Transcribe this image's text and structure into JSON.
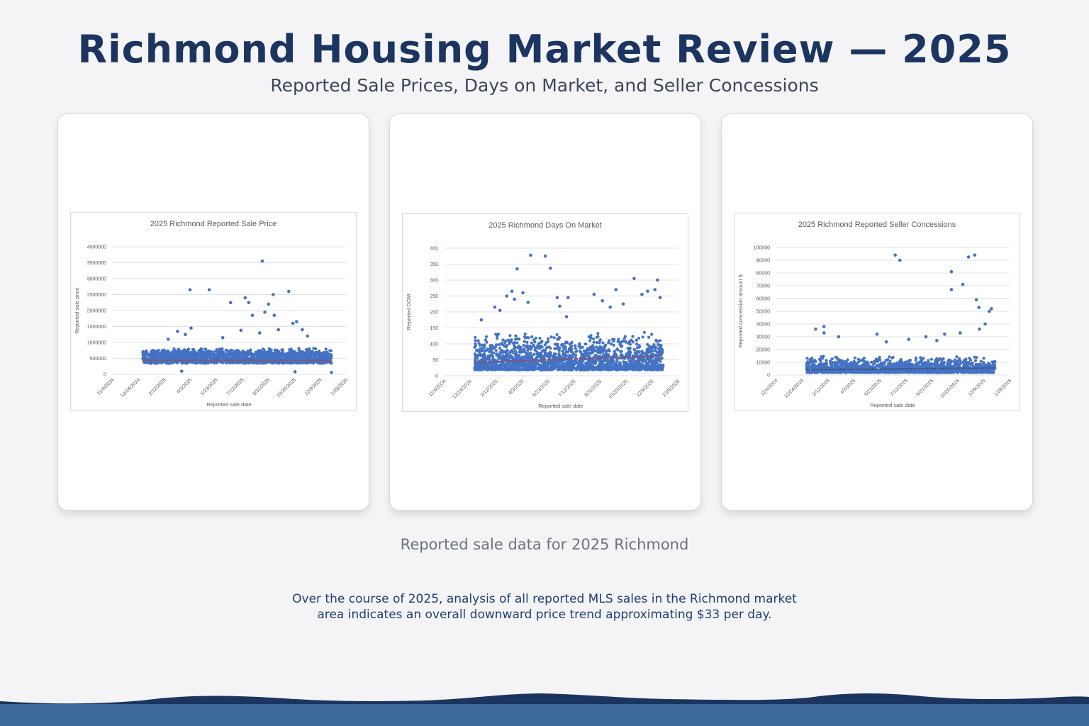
{
  "header": {
    "title": "Richmond Housing Market Review — 2025",
    "subtitle": "Reported Sale Prices, Days on Market, and Seller Concessions"
  },
  "caption": "Reported sale data for 2025 Richmond",
  "summary": {
    "line1": "Over the course of 2025, analysis of all reported MLS sales in the Richmond market",
    "line2": "area indicates an overall downward price trend approximating $33 per day."
  },
  "colors": {
    "navy": "#1b3560",
    "point": "#4472c4",
    "trend_price": "#c0392b",
    "trend_dom": "#c0392b",
    "trend_conc": "#404040",
    "wave_dark": "#1b3560",
    "wave_light": "#3e6a9c"
  },
  "chart_data": [
    {
      "type": "scatter",
      "title": "2025 Richmond Reported Sale Price",
      "xlabel": "Reported sale date",
      "ylabel": "Reported sale price",
      "x_tick_labels": [
        "11/4/2024",
        "12/24/2024",
        "2/12/2025",
        "4/3/2025",
        "5/23/2025",
        "7/12/2025",
        "8/31/2025",
        "10/20/2025",
        "12/9/2025",
        "1/28/2026"
      ],
      "xlim": [
        "2024-11-04",
        "2026-01-28"
      ],
      "y_tick_labels": [
        "0",
        "500000",
        "1000000",
        "1500000",
        "2000000",
        "2500000",
        "3000000",
        "3500000",
        "4000000"
      ],
      "ylim": [
        0,
        4000000
      ],
      "grid": true,
      "trendline": {
        "style": "dotted",
        "color": "red",
        "start": [
          "2025-01-02",
          440000
        ],
        "end": [
          "2025-12-31",
          430000
        ]
      },
      "bulk": {
        "x_range": [
          "2025-01-02",
          "2025-12-31"
        ],
        "y_range": [
          180000,
          900000
        ],
        "count": 1500
      },
      "outliers": [
        [
          "2025-04-03",
          2650000
        ],
        [
          "2025-05-10",
          2650000
        ],
        [
          "2025-06-20",
          2250000
        ],
        [
          "2025-07-18",
          2400000
        ],
        [
          "2025-07-25",
          2250000
        ],
        [
          "2025-08-01",
          1850000
        ],
        [
          "2025-08-20",
          3550000
        ],
        [
          "2025-08-25",
          1950000
        ],
        [
          "2025-09-01",
          2200000
        ],
        [
          "2025-09-10",
          2500000
        ],
        [
          "2025-09-12",
          1850000
        ],
        [
          "2025-10-10",
          2600000
        ],
        [
          "2025-10-18",
          1600000
        ],
        [
          "2025-10-25",
          1650000
        ],
        [
          "2025-11-05",
          1400000
        ],
        [
          "2025-04-05",
          1450000
        ],
        [
          "2025-03-10",
          1350000
        ],
        [
          "2025-03-25",
          1250000
        ],
        [
          "2025-07-10",
          1380000
        ],
        [
          "2025-08-15",
          1300000
        ],
        [
          "2025-11-15",
          1200000
        ],
        [
          "2025-09-20",
          1400000
        ],
        [
          "2025-02-20",
          1100000
        ],
        [
          "2025-06-05",
          1150000
        ],
        [
          "2025-10-22",
          80000
        ],
        [
          "2025-12-31",
          60000
        ],
        [
          "2025-03-18",
          100000
        ]
      ]
    },
    {
      "type": "scatter",
      "title": "2025 Richmond Days On Market",
      "xlabel": "Reported sale date",
      "ylabel": "Reported DOM",
      "x_tick_labels": [
        "11/4/2024",
        "12/24/2024",
        "2/12/2025",
        "4/3/2025",
        "5/23/2025",
        "7/12/2025",
        "8/31/2025",
        "10/20/2025",
        "12/9/2025",
        "1/28/2026"
      ],
      "xlim": [
        "2024-11-04",
        "2026-01-28"
      ],
      "y_tick_labels": [
        "0",
        "50",
        "100",
        "150",
        "200",
        "250",
        "300",
        "350",
        "400"
      ],
      "ylim": [
        0,
        400
      ],
      "grid": true,
      "trendline": {
        "style": "dotted",
        "color": "red",
        "start": [
          "2025-01-02",
          42
        ],
        "end": [
          "2025-12-31",
          62
        ]
      },
      "bulk": {
        "x_range": [
          "2025-01-02",
          "2025-12-31"
        ],
        "y_range": [
          0,
          140
        ],
        "count": 1800
      },
      "outliers": [
        [
          "2025-03-25",
          335
        ],
        [
          "2025-04-20",
          378
        ],
        [
          "2025-05-18",
          375
        ],
        [
          "2025-05-28",
          337
        ],
        [
          "2025-06-10",
          245
        ],
        [
          "2025-06-15",
          218
        ],
        [
          "2025-06-28",
          185
        ],
        [
          "2025-08-20",
          255
        ],
        [
          "2025-09-05",
          235
        ],
        [
          "2025-09-20",
          215
        ],
        [
          "2025-10-01",
          270
        ],
        [
          "2025-10-15",
          225
        ],
        [
          "2025-11-05",
          305
        ],
        [
          "2025-11-20",
          255
        ],
        [
          "2025-12-01",
          265
        ],
        [
          "2025-12-20",
          300
        ],
        [
          "2025-12-15",
          270
        ],
        [
          "2025-03-05",
          250
        ],
        [
          "2025-03-15",
          265
        ],
        [
          "2025-03-20",
          240
        ],
        [
          "2025-04-05",
          260
        ],
        [
          "2025-02-10",
          215
        ],
        [
          "2025-02-20",
          205
        ],
        [
          "2025-01-15",
          175
        ],
        [
          "2025-04-15",
          230
        ],
        [
          "2025-07-01",
          245
        ],
        [
          "2025-12-25",
          245
        ]
      ]
    },
    {
      "type": "scatter",
      "title": "2025 Richmond Reported Seller Concessions",
      "xlabel": "Reported sale date",
      "ylabel": "Reproted concession amount $",
      "x_tick_labels": [
        "11/4/2024",
        "12/24/2024",
        "2/12/2025",
        "4/3/2025",
        "5/23/2025",
        "7/12/2025",
        "8/31/2025",
        "10/20/2025",
        "12/9/2025",
        "1/28/2026"
      ],
      "xlim": [
        "2024-11-04",
        "2026-01-28"
      ],
      "y_tick_labels": [
        "0",
        "10000",
        "20000",
        "30000",
        "40000",
        "50000",
        "60000",
        "70000",
        "80000",
        "90000",
        "100000"
      ],
      "ylim": [
        0,
        100000
      ],
      "grid": true,
      "trendline": {
        "style": "dotted",
        "color": "black",
        "start": [
          "2025-01-02",
          4200
        ],
        "end": [
          "2025-12-31",
          5500
        ]
      },
      "bulk": {
        "x_range": [
          "2025-01-02",
          "2025-12-31"
        ],
        "y_range": [
          0,
          15000
        ],
        "count": 1500
      },
      "outliers": [
        [
          "2025-06-22",
          94000
        ],
        [
          "2025-07-01",
          90000
        ],
        [
          "2025-10-08",
          81000
        ],
        [
          "2025-10-08",
          67000
        ],
        [
          "2025-10-30",
          71000
        ],
        [
          "2025-11-10",
          92500
        ],
        [
          "2025-11-22",
          94000
        ],
        [
          "2025-11-25",
          59000
        ],
        [
          "2025-11-30",
          53000
        ],
        [
          "2025-12-12",
          40000
        ],
        [
          "2025-12-01",
          36000
        ],
        [
          "2025-12-20",
          50000
        ],
        [
          "2025-12-24",
          52000
        ],
        [
          "2025-02-05",
          38000
        ],
        [
          "2025-01-20",
          36000
        ],
        [
          "2025-02-05",
          33000
        ],
        [
          "2025-05-18",
          32000
        ],
        [
          "2025-07-18",
          28000
        ],
        [
          "2025-08-20",
          30000
        ],
        [
          "2025-09-25",
          32000
        ],
        [
          "2025-10-25",
          33000
        ],
        [
          "2025-03-05",
          30000
        ],
        [
          "2025-06-05",
          26000
        ],
        [
          "2025-09-10",
          27000
        ]
      ]
    }
  ]
}
